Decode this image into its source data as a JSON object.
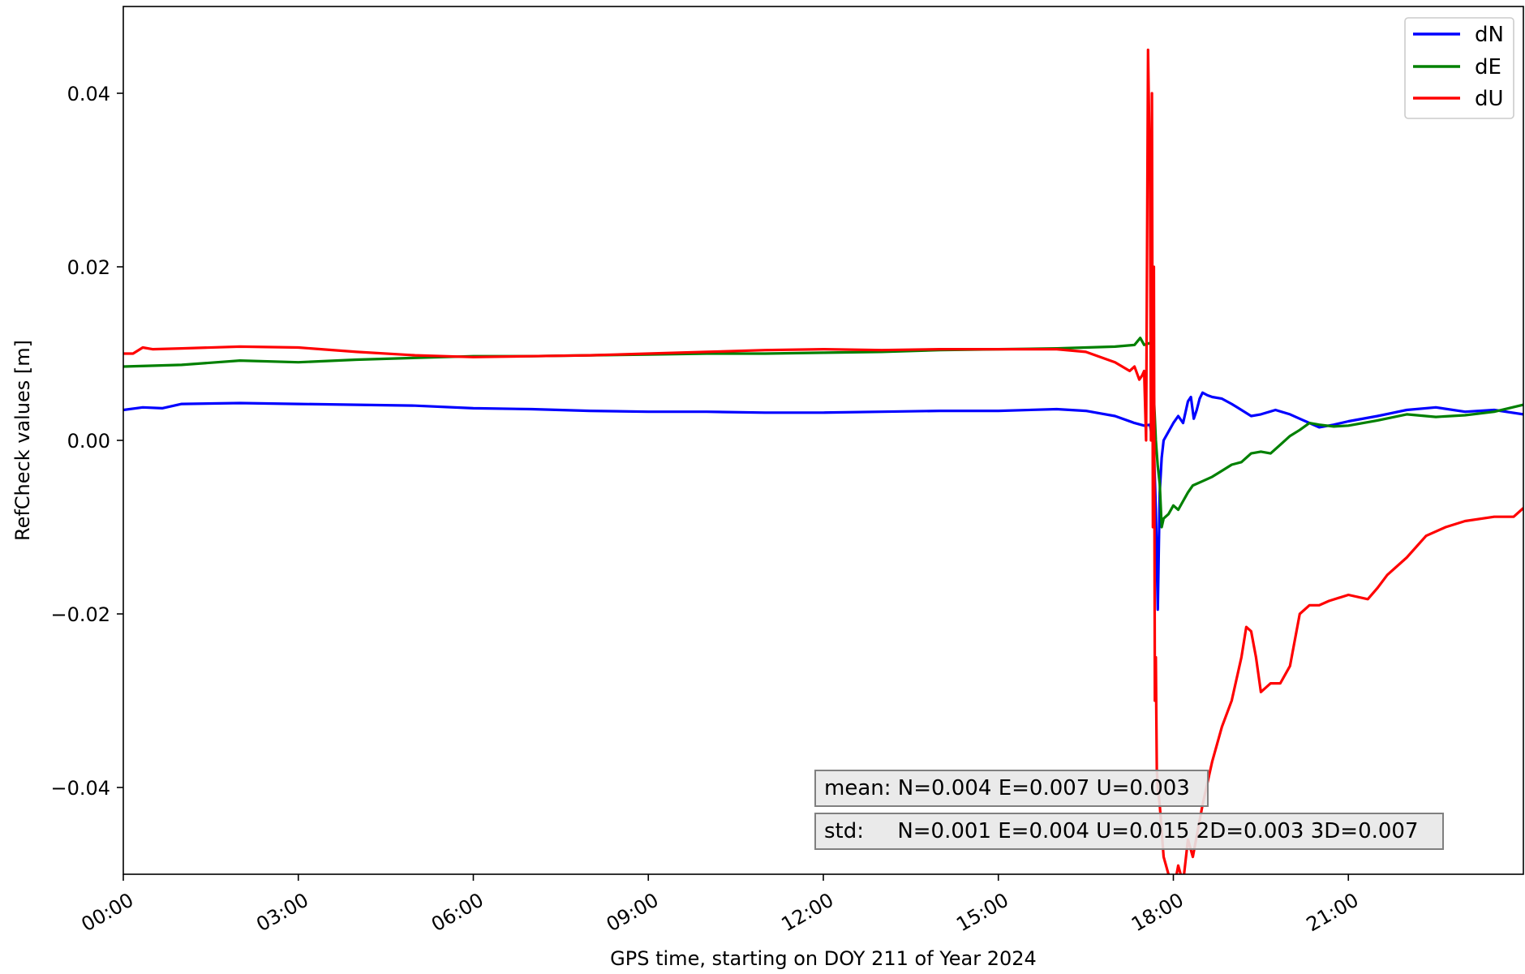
{
  "chart_data": {
    "type": "line",
    "title": "",
    "xlabel": "GPS time, starting on DOY 211 of Year 2024",
    "ylabel": "RefCheck values [m]",
    "xlim": [
      "00:00",
      "24:00"
    ],
    "ylim": [
      -0.05,
      0.05
    ],
    "x_ticks": [
      "00:00",
      "03:00",
      "06:00",
      "09:00",
      "12:00",
      "15:00",
      "18:00",
      "21:00"
    ],
    "y_ticks": [
      -0.04,
      -0.02,
      0.0,
      0.02,
      0.04
    ],
    "y_tick_labels": [
      "−0.04",
      "−0.02",
      "0.00",
      "0.02",
      "0.04"
    ],
    "legend_position": "top-right",
    "grid": false,
    "series": [
      {
        "name": "dN",
        "color": "#0000ff",
        "x": [
          "00:00",
          "00:20",
          "00:40",
          "01:00",
          "02:00",
          "03:00",
          "04:00",
          "05:00",
          "06:00",
          "07:00",
          "08:00",
          "09:00",
          "10:00",
          "11:00",
          "12:00",
          "13:00",
          "14:00",
          "15:00",
          "16:00",
          "16:30",
          "17:00",
          "17:20",
          "17:30",
          "17:36",
          "17:40",
          "17:42",
          "17:44",
          "17:46",
          "17:48",
          "17:50",
          "17:55",
          "18:00",
          "18:05",
          "18:10",
          "18:15",
          "18:18",
          "18:21",
          "18:24",
          "18:27",
          "18:30",
          "18:35",
          "18:40",
          "18:50",
          "19:00",
          "19:10",
          "19:20",
          "19:30",
          "19:45",
          "20:00",
          "20:10",
          "20:20",
          "20:30",
          "20:45",
          "21:00",
          "21:30",
          "22:00",
          "22:30",
          "23:00",
          "23:30",
          "24:00"
        ],
        "y": [
          0.0035,
          0.0038,
          0.0037,
          0.0042,
          0.0043,
          0.0042,
          0.0041,
          0.004,
          0.0037,
          0.0036,
          0.0034,
          0.0033,
          0.0033,
          0.0032,
          0.0032,
          0.0033,
          0.0034,
          0.0034,
          0.0036,
          0.0034,
          0.0028,
          0.002,
          0.0017,
          0.0018,
          -0.001,
          -0.008,
          -0.0195,
          -0.006,
          -0.002,
          0.0,
          0.001,
          0.002,
          0.0028,
          0.002,
          0.0045,
          0.005,
          0.0025,
          0.0035,
          0.0048,
          0.0055,
          0.0052,
          0.005,
          0.0048,
          0.0042,
          0.0035,
          0.0028,
          0.003,
          0.0035,
          0.003,
          0.0025,
          0.002,
          0.0015,
          0.0018,
          0.0022,
          0.0028,
          0.0035,
          0.0038,
          0.0033,
          0.0035,
          0.003
        ]
      },
      {
        "name": "dE",
        "color": "#008000",
        "x": [
          "00:00",
          "01:00",
          "02:00",
          "03:00",
          "04:00",
          "05:00",
          "06:00",
          "07:00",
          "08:00",
          "09:00",
          "10:00",
          "11:00",
          "12:00",
          "13:00",
          "14:00",
          "15:00",
          "16:00",
          "17:00",
          "17:20",
          "17:26",
          "17:30",
          "17:35",
          "17:38",
          "17:40",
          "17:42",
          "17:44",
          "17:46",
          "17:48",
          "17:50",
          "17:55",
          "18:00",
          "18:05",
          "18:10",
          "18:15",
          "18:20",
          "18:30",
          "18:40",
          "18:50",
          "19:00",
          "19:10",
          "19:20",
          "19:30",
          "19:40",
          "19:50",
          "20:00",
          "20:10",
          "20:20",
          "20:30",
          "20:45",
          "21:00",
          "21:30",
          "22:00",
          "22:30",
          "23:00",
          "23:30",
          "24:00"
        ],
        "y": [
          0.0085,
          0.0087,
          0.0092,
          0.009,
          0.0093,
          0.0095,
          0.0097,
          0.0097,
          0.0098,
          0.0099,
          0.01,
          0.01,
          0.0101,
          0.0102,
          0.0104,
          0.0105,
          0.0106,
          0.0108,
          0.011,
          0.0118,
          0.011,
          0.0112,
          0.011,
          0.005,
          0.0,
          -0.003,
          -0.005,
          -0.01,
          -0.009,
          -0.0085,
          -0.0075,
          -0.008,
          -0.007,
          -0.006,
          -0.0052,
          -0.0047,
          -0.0042,
          -0.0035,
          -0.0028,
          -0.0025,
          -0.0015,
          -0.0013,
          -0.0015,
          -0.0005,
          0.0005,
          0.0012,
          0.002,
          0.0018,
          0.0016,
          0.0017,
          0.0023,
          0.003,
          0.0027,
          0.0029,
          0.0033,
          0.0041
        ]
      },
      {
        "name": "dU",
        "color": "#ff0000",
        "x": [
          "00:00",
          "00:10",
          "00:20",
          "00:30",
          "01:00",
          "02:00",
          "03:00",
          "04:00",
          "05:00",
          "06:00",
          "07:00",
          "08:00",
          "09:00",
          "10:00",
          "11:00",
          "12:00",
          "13:00",
          "14:00",
          "15:00",
          "16:00",
          "16:30",
          "17:00",
          "17:15",
          "17:20",
          "17:25",
          "17:28",
          "17:30",
          "17:32",
          "17:34",
          "17:36",
          "17:37",
          "17:38",
          "17:39",
          "17:40",
          "17:41",
          "17:42",
          "17:43",
          "17:44",
          "17:46",
          "17:48",
          "17:50",
          "17:55",
          "18:00",
          "18:05",
          "18:10",
          "18:15",
          "18:20",
          "18:25",
          "18:30",
          "18:40",
          "18:50",
          "19:00",
          "19:10",
          "19:15",
          "19:20",
          "19:25",
          "19:30",
          "19:40",
          "19:50",
          "20:00",
          "20:10",
          "20:20",
          "20:30",
          "20:40",
          "21:00",
          "21:20",
          "21:30",
          "21:40",
          "22:00",
          "22:20",
          "22:40",
          "23:00",
          "23:30",
          "23:50",
          "24:00"
        ],
        "y": [
          0.01,
          0.01,
          0.0107,
          0.0105,
          0.0106,
          0.0108,
          0.0107,
          0.0102,
          0.0098,
          0.0096,
          0.0097,
          0.0098,
          0.01,
          0.0102,
          0.0104,
          0.0105,
          0.0104,
          0.0105,
          0.0105,
          0.0105,
          0.0102,
          0.009,
          0.008,
          0.0085,
          0.007,
          0.0075,
          0.008,
          0.0,
          0.045,
          0.03,
          0.0,
          0.04,
          -0.01,
          0.02,
          -0.03,
          -0.025,
          -0.038,
          -0.04,
          -0.042,
          -0.045,
          -0.048,
          -0.05,
          -0.052,
          -0.049,
          -0.051,
          -0.046,
          -0.048,
          -0.045,
          -0.042,
          -0.037,
          -0.033,
          -0.03,
          -0.025,
          -0.0215,
          -0.022,
          -0.025,
          -0.029,
          -0.028,
          -0.028,
          -0.026,
          -0.02,
          -0.019,
          -0.019,
          -0.0185,
          -0.0178,
          -0.0183,
          -0.017,
          -0.0155,
          -0.0135,
          -0.011,
          -0.01,
          -0.0093,
          -0.0088,
          -0.0088,
          -0.0078
        ]
      }
    ],
    "annotations": [
      "mean: N=0.004 E=0.007 U=0.003",
      "std:     N=0.001 E=0.004 U=0.015 2D=0.003 3D=0.007"
    ]
  }
}
